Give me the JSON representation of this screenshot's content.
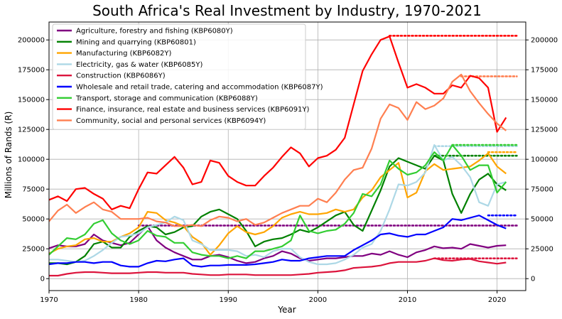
{
  "chart_data": {
    "type": "line",
    "title": "South Africa's Real Investment by Industry, 1970-2021",
    "xlabel": "Year",
    "ylabel": "Millions of Rands (R)",
    "xlim": [
      1970,
      2023.2
    ],
    "ylim": [
      -10000,
      215000
    ],
    "xticks": [
      1970,
      1980,
      1990,
      2000,
      2010,
      2020
    ],
    "xtick_labels": [
      "1970",
      "1980",
      "1990",
      "2000",
      "2010",
      "2020"
    ],
    "yticks": [
      0,
      25000,
      50000,
      75000,
      100000,
      125000,
      150000,
      175000,
      200000
    ],
    "ytick_labels": [
      "0",
      "25000",
      "50000",
      "75000",
      "100000",
      "125000",
      "150000",
      "175000",
      "200000"
    ],
    "grid": true,
    "legend_position": "top-left",
    "x": [
      1970,
      1971,
      1972,
      1973,
      1974,
      1975,
      1976,
      1977,
      1978,
      1979,
      1980,
      1981,
      1982,
      1983,
      1984,
      1985,
      1986,
      1987,
      1988,
      1989,
      1990,
      1991,
      1992,
      1993,
      1994,
      1995,
      1996,
      1997,
      1998,
      1999,
      2000,
      2001,
      2002,
      2003,
      2004,
      2005,
      2006,
      2007,
      2008,
      2009,
      2010,
      2011,
      2012,
      2013,
      2014,
      2015,
      2016,
      2017,
      2018,
      2019,
      2020,
      2021
    ],
    "series": [
      {
        "name": "Agriculture, forestry and fishing (KBP6080Y)",
        "color": "#800080",
        "dotted_level": 44500,
        "dotted_from": 1980,
        "values": [
          25500,
          28000,
          27000,
          27000,
          29000,
          37000,
          32000,
          30000,
          28000,
          30000,
          37000,
          44000,
          32000,
          26000,
          22000,
          19000,
          16000,
          16000,
          19000,
          20000,
          18000,
          15000,
          13000,
          14000,
          17000,
          19000,
          23000,
          21000,
          17000,
          15000,
          16000,
          17000,
          17000,
          18000,
          19000,
          19000,
          21000,
          20000,
          23000,
          20000,
          18000,
          22000,
          24000,
          27000,
          25500,
          26000,
          25000,
          29000,
          27500,
          26000,
          27500,
          28000
        ]
      },
      {
        "name": "Mining and quarrying (KBP60801)",
        "color": "#008000",
        "dotted_level": 103000,
        "dotted_from": 2013,
        "values": [
          13000,
          13000,
          12000,
          14000,
          19000,
          29000,
          31000,
          26000,
          26000,
          35000,
          40000,
          44000,
          43000,
          37000,
          39000,
          43000,
          44000,
          52000,
          56000,
          58000,
          54000,
          50000,
          40000,
          27000,
          31000,
          33000,
          34000,
          37000,
          41000,
          39000,
          43000,
          48000,
          53000,
          56000,
          45000,
          40000,
          57000,
          74000,
          94000,
          101000,
          98000,
          95000,
          92000,
          103000,
          99000,
          71000,
          55000,
          71000,
          83000,
          88000,
          79000,
          74000
        ]
      },
      {
        "name": "Manufacturing (KBP6082Y)",
        "color": "#ffa500",
        "dotted_level": 106000,
        "dotted_from": 2019,
        "values": [
          21000,
          25000,
          27000,
          28000,
          33000,
          34000,
          31000,
          31000,
          35000,
          38000,
          43000,
          56000,
          55000,
          49000,
          47000,
          44000,
          35000,
          30000,
          20000,
          28000,
          38000,
          44000,
          39000,
          37000,
          39000,
          44000,
          51000,
          54000,
          56000,
          54000,
          54000,
          55000,
          58000,
          56000,
          58000,
          68000,
          74000,
          85000,
          91000,
          97000,
          68000,
          72000,
          90000,
          96000,
          91000,
          92000,
          93000,
          94000,
          99000,
          105000,
          94000,
          88000
        ]
      },
      {
        "name": "Electricity, gas & water (KBP6085Y)",
        "color": "#add8e6",
        "dotted_level": 111000,
        "dotted_from": 2013,
        "values": [
          16000,
          16000,
          15000,
          14000,
          15000,
          19000,
          24000,
          30000,
          35000,
          36000,
          38000,
          43000,
          45000,
          47000,
          52000,
          49000,
          32000,
          29000,
          24000,
          24000,
          24000,
          23000,
          19000,
          20000,
          18000,
          23000,
          25000,
          25000,
          18000,
          14000,
          12000,
          12000,
          13000,
          16000,
          20000,
          26000,
          29000,
          40000,
          58000,
          79000,
          78000,
          81000,
          89000,
          112000,
          99000,
          102000,
          95000,
          85000,
          64000,
          61000,
          79000,
          81000
        ]
      },
      {
        "name": "Construction (KBP6086Y)",
        "color": "#dc143c",
        "dotted_level": 17000,
        "dotted_from": 2013,
        "values": [
          2500,
          2500,
          4000,
          5000,
          5500,
          5500,
          5000,
          4500,
          4500,
          4500,
          5000,
          5500,
          5500,
          5000,
          5000,
          5000,
          4000,
          3500,
          3000,
          3000,
          3500,
          3500,
          3500,
          3000,
          3000,
          3000,
          3000,
          3000,
          3500,
          4000,
          5000,
          5500,
          6000,
          7000,
          9000,
          9500,
          10000,
          11000,
          13000,
          14000,
          14000,
          14000,
          15000,
          17000,
          15500,
          15000,
          16000,
          16500,
          14500,
          13500,
          12500,
          13500
        ]
      },
      {
        "name": "Wholesale and retail trade, catering and accommodation (KBP6087Y)",
        "color": "#0000ff",
        "dotted_level": 53000,
        "dotted_from": 2019,
        "values": [
          12000,
          13000,
          13000,
          14000,
          14000,
          13000,
          14000,
          14000,
          11000,
          10000,
          10000,
          13000,
          15000,
          14500,
          16000,
          17000,
          11000,
          10000,
          11000,
          11000,
          11500,
          11500,
          11500,
          12000,
          13000,
          14000,
          16000,
          15000,
          15000,
          17000,
          18000,
          19000,
          19000,
          19000,
          24000,
          28000,
          32000,
          37000,
          38000,
          36000,
          35000,
          37000,
          37000,
          40000,
          43000,
          50000,
          49000,
          51000,
          53000,
          49000,
          45000,
          42000
        ]
      },
      {
        "name": "Transport, storage and communication (KBP6088Y)",
        "color": "#32cd32",
        "dotted_level": 112000,
        "dotted_from": 2015,
        "values": [
          20000,
          27000,
          34000,
          33000,
          37000,
          46000,
          49000,
          38000,
          32000,
          29000,
          32000,
          40000,
          36000,
          35000,
          30000,
          30000,
          22000,
          20000,
          19000,
          19000,
          17000,
          19000,
          17000,
          23000,
          23000,
          25000,
          27000,
          32000,
          53000,
          40000,
          38000,
          40000,
          41000,
          46000,
          55000,
          71000,
          69000,
          79000,
          99000,
          92000,
          87000,
          89000,
          95000,
          106000,
          99000,
          112000,
          103000,
          91000,
          95000,
          95000,
          72000,
          81000
        ]
      },
      {
        "name": "Finance, insurance, real estate and business services (KBP6091Y)",
        "color": "#ff0000",
        "dotted_level": 203500,
        "dotted_from": 2008,
        "values": [
          66000,
          69000,
          65000,
          75000,
          76000,
          71000,
          67000,
          58000,
          61000,
          59000,
          75000,
          89000,
          88000,
          95000,
          102000,
          93000,
          79000,
          81000,
          99000,
          97000,
          86000,
          81000,
          78000,
          78000,
          86000,
          93000,
          102000,
          110000,
          105000,
          94000,
          101000,
          103000,
          108000,
          118000,
          146000,
          174000,
          188000,
          200000,
          203000,
          181000,
          160000,
          163000,
          160000,
          155000,
          155000,
          162000,
          160000,
          170000,
          168000,
          160000,
          123000,
          135000
        ]
      },
      {
        "name": "Community, social and personal services (KBP6094Y)",
        "color": "#ff7f50",
        "dotted_level": 169500,
        "dotted_from": 2016,
        "values": [
          48000,
          57000,
          62000,
          55000,
          60000,
          64000,
          58000,
          56000,
          50000,
          50000,
          50000,
          51000,
          48000,
          47000,
          44000,
          44000,
          45000,
          44000,
          49000,
          52000,
          51000,
          48000,
          50000,
          45000,
          47000,
          51000,
          55000,
          58000,
          61000,
          61000,
          67000,
          64000,
          72000,
          83000,
          91000,
          93000,
          109000,
          134000,
          146000,
          143000,
          133000,
          148000,
          142000,
          145000,
          151000,
          165000,
          171000,
          157000,
          147000,
          138000,
          130000,
          124000
        ]
      }
    ]
  }
}
